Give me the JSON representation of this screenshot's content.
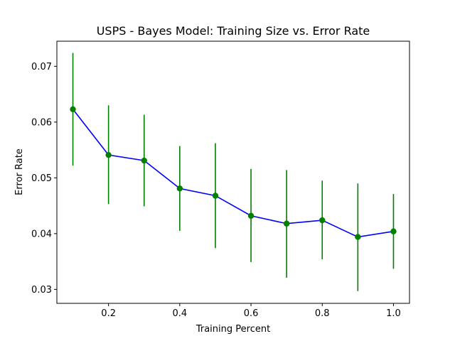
{
  "chart_data": {
    "type": "line",
    "title": "USPS - Bayes Model: Training Size vs. Error Rate",
    "xlabel": "Training Percent",
    "ylabel": "Error Rate",
    "xlim": [
      0.055,
      1.045
    ],
    "ylim": [
      0.0275,
      0.0745
    ],
    "xticks": [
      0.2,
      0.4,
      0.6,
      0.8,
      1.0
    ],
    "xtick_labels": [
      "0.2",
      "0.4",
      "0.6",
      "0.8",
      "1.0"
    ],
    "yticks": [
      0.03,
      0.04,
      0.05,
      0.06,
      0.07
    ],
    "ytick_labels": [
      "0.03",
      "0.04",
      "0.05",
      "0.06",
      "0.07"
    ],
    "grid": false,
    "series": [
      {
        "x": [
          0.1,
          0.2,
          0.3,
          0.4,
          0.5,
          0.6,
          0.7,
          0.8,
          0.9,
          1.0
        ],
        "y": [
          0.0623,
          0.0541,
          0.0531,
          0.0481,
          0.0468,
          0.0432,
          0.0418,
          0.0424,
          0.0394,
          0.0404
        ],
        "error_low": [
          0.0522,
          0.0453,
          0.0449,
          0.0405,
          0.0374,
          0.0349,
          0.0321,
          0.0354,
          0.0297,
          0.0337
        ],
        "error_high": [
          0.0724,
          0.063,
          0.0613,
          0.0557,
          0.0562,
          0.0516,
          0.0514,
          0.0495,
          0.049,
          0.0471
        ],
        "line_color": "#0000ff",
        "marker_color": "#008000",
        "errorbar_color": "#008000"
      }
    ]
  }
}
